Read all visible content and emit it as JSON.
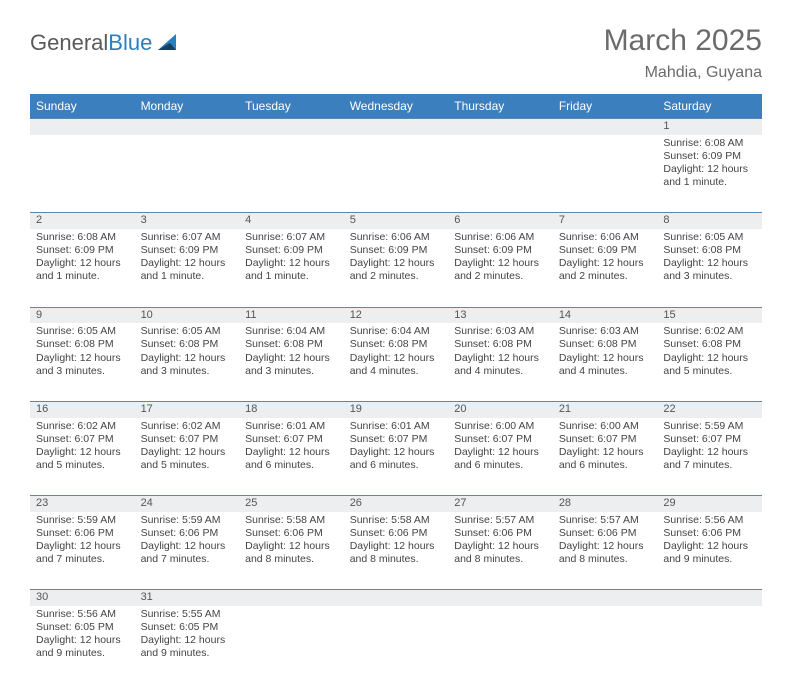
{
  "logo": {
    "text1": "General",
    "text2": "Blue",
    "sail_color": "#2a7fbf",
    "sail_dark": "#17405e"
  },
  "title": "March 2025",
  "location": "Mahdia, Guyana",
  "header_bg": "#3b7fbf",
  "header_fg": "#ffffff",
  "daynum_bg": "#eceeef",
  "rule_color": "#5a87b0",
  "daysOfWeek": [
    "Sunday",
    "Monday",
    "Tuesday",
    "Wednesday",
    "Thursday",
    "Friday",
    "Saturday"
  ],
  "weeks": [
    {
      "cells": [
        {
          "empty": true
        },
        {
          "empty": true
        },
        {
          "empty": true
        },
        {
          "empty": true
        },
        {
          "empty": true
        },
        {
          "empty": true
        },
        {
          "day": "1",
          "sunrise": "Sunrise: 6:08 AM",
          "sunset": "Sunset: 6:09 PM",
          "daylight1": "Daylight: 12 hours",
          "daylight2": "and 1 minute."
        }
      ]
    },
    {
      "cells": [
        {
          "day": "2",
          "sunrise": "Sunrise: 6:08 AM",
          "sunset": "Sunset: 6:09 PM",
          "daylight1": "Daylight: 12 hours",
          "daylight2": "and 1 minute."
        },
        {
          "day": "3",
          "sunrise": "Sunrise: 6:07 AM",
          "sunset": "Sunset: 6:09 PM",
          "daylight1": "Daylight: 12 hours",
          "daylight2": "and 1 minute."
        },
        {
          "day": "4",
          "sunrise": "Sunrise: 6:07 AM",
          "sunset": "Sunset: 6:09 PM",
          "daylight1": "Daylight: 12 hours",
          "daylight2": "and 1 minute."
        },
        {
          "day": "5",
          "sunrise": "Sunrise: 6:06 AM",
          "sunset": "Sunset: 6:09 PM",
          "daylight1": "Daylight: 12 hours",
          "daylight2": "and 2 minutes."
        },
        {
          "day": "6",
          "sunrise": "Sunrise: 6:06 AM",
          "sunset": "Sunset: 6:09 PM",
          "daylight1": "Daylight: 12 hours",
          "daylight2": "and 2 minutes."
        },
        {
          "day": "7",
          "sunrise": "Sunrise: 6:06 AM",
          "sunset": "Sunset: 6:09 PM",
          "daylight1": "Daylight: 12 hours",
          "daylight2": "and 2 minutes."
        },
        {
          "day": "8",
          "sunrise": "Sunrise: 6:05 AM",
          "sunset": "Sunset: 6:08 PM",
          "daylight1": "Daylight: 12 hours",
          "daylight2": "and 3 minutes."
        }
      ]
    },
    {
      "cells": [
        {
          "day": "9",
          "sunrise": "Sunrise: 6:05 AM",
          "sunset": "Sunset: 6:08 PM",
          "daylight1": "Daylight: 12 hours",
          "daylight2": "and 3 minutes."
        },
        {
          "day": "10",
          "sunrise": "Sunrise: 6:05 AM",
          "sunset": "Sunset: 6:08 PM",
          "daylight1": "Daylight: 12 hours",
          "daylight2": "and 3 minutes."
        },
        {
          "day": "11",
          "sunrise": "Sunrise: 6:04 AM",
          "sunset": "Sunset: 6:08 PM",
          "daylight1": "Daylight: 12 hours",
          "daylight2": "and 3 minutes."
        },
        {
          "day": "12",
          "sunrise": "Sunrise: 6:04 AM",
          "sunset": "Sunset: 6:08 PM",
          "daylight1": "Daylight: 12 hours",
          "daylight2": "and 4 minutes."
        },
        {
          "day": "13",
          "sunrise": "Sunrise: 6:03 AM",
          "sunset": "Sunset: 6:08 PM",
          "daylight1": "Daylight: 12 hours",
          "daylight2": "and 4 minutes."
        },
        {
          "day": "14",
          "sunrise": "Sunrise: 6:03 AM",
          "sunset": "Sunset: 6:08 PM",
          "daylight1": "Daylight: 12 hours",
          "daylight2": "and 4 minutes."
        },
        {
          "day": "15",
          "sunrise": "Sunrise: 6:02 AM",
          "sunset": "Sunset: 6:08 PM",
          "daylight1": "Daylight: 12 hours",
          "daylight2": "and 5 minutes."
        }
      ]
    },
    {
      "cells": [
        {
          "day": "16",
          "sunrise": "Sunrise: 6:02 AM",
          "sunset": "Sunset: 6:07 PM",
          "daylight1": "Daylight: 12 hours",
          "daylight2": "and 5 minutes."
        },
        {
          "day": "17",
          "sunrise": "Sunrise: 6:02 AM",
          "sunset": "Sunset: 6:07 PM",
          "daylight1": "Daylight: 12 hours",
          "daylight2": "and 5 minutes."
        },
        {
          "day": "18",
          "sunrise": "Sunrise: 6:01 AM",
          "sunset": "Sunset: 6:07 PM",
          "daylight1": "Daylight: 12 hours",
          "daylight2": "and 6 minutes."
        },
        {
          "day": "19",
          "sunrise": "Sunrise: 6:01 AM",
          "sunset": "Sunset: 6:07 PM",
          "daylight1": "Daylight: 12 hours",
          "daylight2": "and 6 minutes."
        },
        {
          "day": "20",
          "sunrise": "Sunrise: 6:00 AM",
          "sunset": "Sunset: 6:07 PM",
          "daylight1": "Daylight: 12 hours",
          "daylight2": "and 6 minutes."
        },
        {
          "day": "21",
          "sunrise": "Sunrise: 6:00 AM",
          "sunset": "Sunset: 6:07 PM",
          "daylight1": "Daylight: 12 hours",
          "daylight2": "and 6 minutes."
        },
        {
          "day": "22",
          "sunrise": "Sunrise: 5:59 AM",
          "sunset": "Sunset: 6:07 PM",
          "daylight1": "Daylight: 12 hours",
          "daylight2": "and 7 minutes."
        }
      ]
    },
    {
      "cells": [
        {
          "day": "23",
          "sunrise": "Sunrise: 5:59 AM",
          "sunset": "Sunset: 6:06 PM",
          "daylight1": "Daylight: 12 hours",
          "daylight2": "and 7 minutes."
        },
        {
          "day": "24",
          "sunrise": "Sunrise: 5:59 AM",
          "sunset": "Sunset: 6:06 PM",
          "daylight1": "Daylight: 12 hours",
          "daylight2": "and 7 minutes."
        },
        {
          "day": "25",
          "sunrise": "Sunrise: 5:58 AM",
          "sunset": "Sunset: 6:06 PM",
          "daylight1": "Daylight: 12 hours",
          "daylight2": "and 8 minutes."
        },
        {
          "day": "26",
          "sunrise": "Sunrise: 5:58 AM",
          "sunset": "Sunset: 6:06 PM",
          "daylight1": "Daylight: 12 hours",
          "daylight2": "and 8 minutes."
        },
        {
          "day": "27",
          "sunrise": "Sunrise: 5:57 AM",
          "sunset": "Sunset: 6:06 PM",
          "daylight1": "Daylight: 12 hours",
          "daylight2": "and 8 minutes."
        },
        {
          "day": "28",
          "sunrise": "Sunrise: 5:57 AM",
          "sunset": "Sunset: 6:06 PM",
          "daylight1": "Daylight: 12 hours",
          "daylight2": "and 8 minutes."
        },
        {
          "day": "29",
          "sunrise": "Sunrise: 5:56 AM",
          "sunset": "Sunset: 6:06 PM",
          "daylight1": "Daylight: 12 hours",
          "daylight2": "and 9 minutes."
        }
      ]
    },
    {
      "cells": [
        {
          "day": "30",
          "sunrise": "Sunrise: 5:56 AM",
          "sunset": "Sunset: 6:05 PM",
          "daylight1": "Daylight: 12 hours",
          "daylight2": "and 9 minutes."
        },
        {
          "day": "31",
          "sunrise": "Sunrise: 5:55 AM",
          "sunset": "Sunset: 6:05 PM",
          "daylight1": "Daylight: 12 hours",
          "daylight2": "and 9 minutes."
        },
        {
          "empty": true
        },
        {
          "empty": true
        },
        {
          "empty": true
        },
        {
          "empty": true
        },
        {
          "empty": true
        }
      ]
    }
  ]
}
